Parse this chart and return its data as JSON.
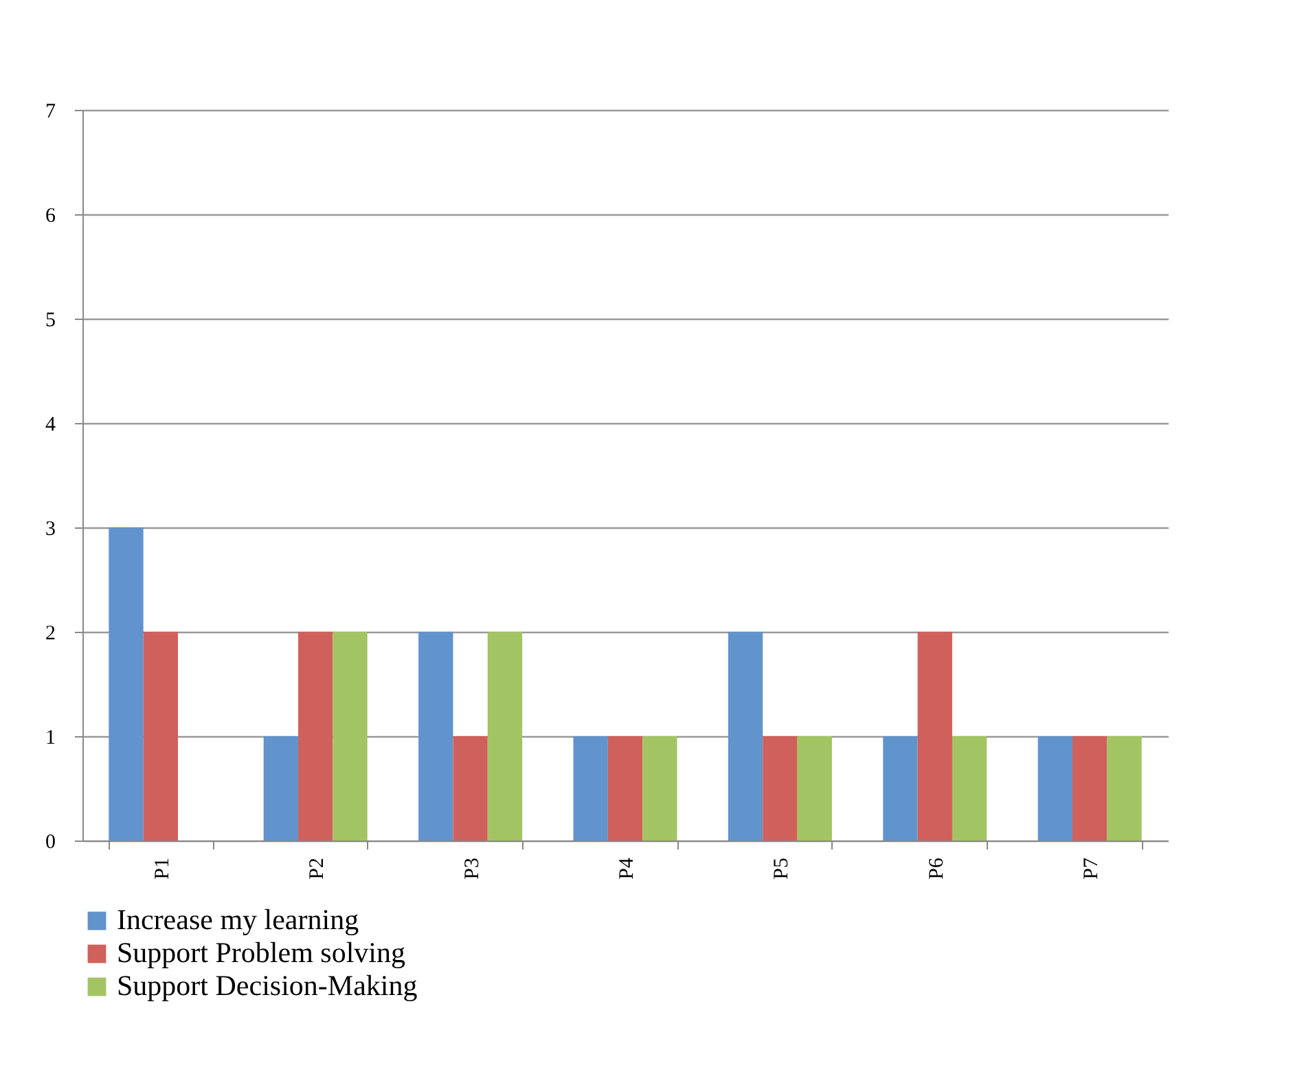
{
  "chart_data": {
    "type": "bar",
    "categories": [
      "P1",
      "P2",
      "P3",
      "P4",
      "P5",
      "P6",
      "P7"
    ],
    "series": [
      {
        "name": "Increase my learning",
        "color": "#6193cc",
        "values": [
          3,
          1,
          2,
          1,
          2,
          1,
          1
        ]
      },
      {
        "name": "Support Problem solving",
        "color": "#d0605c",
        "values": [
          2,
          2,
          1,
          1,
          1,
          2,
          1
        ]
      },
      {
        "name": "Support Decision-Making",
        "color": "#a3c463",
        "values": [
          0,
          2,
          2,
          1,
          1,
          1,
          1
        ]
      }
    ],
    "ylim": [
      0,
      7
    ],
    "yticks": [
      0,
      1,
      2,
      3,
      4,
      5,
      6,
      7
    ],
    "grid": "y",
    "legend": "bottom"
  }
}
